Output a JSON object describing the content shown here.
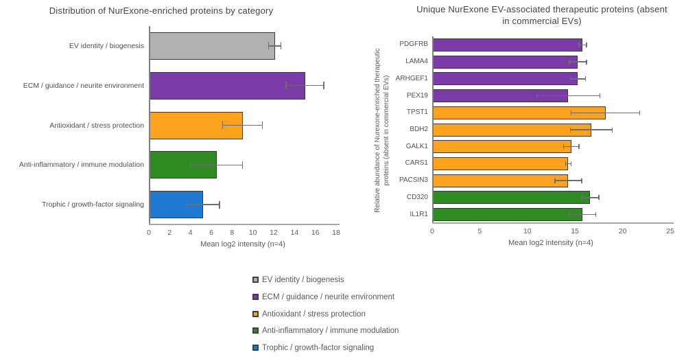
{
  "chart_data": [
    {
      "type": "bar",
      "orientation": "horizontal",
      "title": "Distribution of NurExone-enriched proteins by category",
      "categories": [
        "EV identity / biogenesis",
        "ECM / guidance / neurite environment",
        "Antioxidant / stress protection",
        "Anti-inflammatory / immune modulation",
        "Trophic / growth-factor signaling"
      ],
      "values": [
        12.1,
        15.0,
        9.0,
        6.5,
        5.2
      ],
      "errors": [
        0.6,
        1.8,
        1.9,
        2.5,
        1.6
      ],
      "colors": [
        "#B1B1B1",
        "#7A3BA8",
        "#FCA21D",
        "#2E8B22",
        "#1F78D1"
      ],
      "xlabel": "Mean log2 intensity (n=4)",
      "xlim": [
        0,
        18
      ],
      "xticks": [
        0,
        2,
        4,
        6,
        8,
        10,
        12,
        14,
        16,
        18
      ],
      "grid": false,
      "error_bars": true
    },
    {
      "type": "bar",
      "orientation": "horizontal",
      "title": "Unique NurExone EV-associated therapeutic proteins (absent in commercial EVs)",
      "title_lines": [
        "Unique NurExone EV-associated therapeutic proteins (absent",
        "in commercial EVs)"
      ],
      "ylabel": "Relative abundance of Nurexone-enriched therapeutic proteins (absent in commercial EVs)",
      "ylabel_lines": [
        "Relative abundance of Nurexone-enriched therapeutic",
        "proteins (absent in commercial EVs)"
      ],
      "categories": [
        "PDGFRB",
        "LAMA4",
        "ARHGEF1",
        "PEX19",
        "TPST1",
        "BDH2",
        "GALK1",
        "CARS1",
        "PACSIN3",
        "CD320",
        "IL1R1"
      ],
      "values": [
        15.8,
        15.3,
        15.3,
        14.3,
        18.2,
        16.7,
        14.6,
        14.3,
        14.3,
        16.6,
        15.8
      ],
      "errors": [
        0.4,
        0.9,
        0.8,
        3.3,
        3.6,
        2.2,
        0.8,
        0.3,
        1.4,
        0.9,
        1.4
      ],
      "colors": [
        "#7A3BA8",
        "#7A3BA8",
        "#7A3BA8",
        "#7A3BA8",
        "#FCA21D",
        "#FCA21D",
        "#FCA21D",
        "#FCA21D",
        "#FCA21D",
        "#2E8B22",
        "#2E8B22"
      ],
      "xlabel": "Mean log2 intensity (n=4)",
      "xlim": [
        0,
        25
      ],
      "xticks": [
        0,
        5,
        10,
        15,
        20,
        25
      ],
      "grid": false,
      "error_bars": true
    }
  ],
  "legend": {
    "items": [
      {
        "label": "EV identity / biogenesis",
        "color": "#B1B1B1"
      },
      {
        "label": "ECM / guidance / neurite environment",
        "color": "#7A3BA8"
      },
      {
        "label": "Antioxidant / stress protection",
        "color": "#FCA21D"
      },
      {
        "label": "Anti-inflammatory / immune modulation",
        "color": "#2E8B22"
      },
      {
        "label": "Trophic / growth-factor signaling",
        "color": "#1F78D1"
      }
    ]
  }
}
